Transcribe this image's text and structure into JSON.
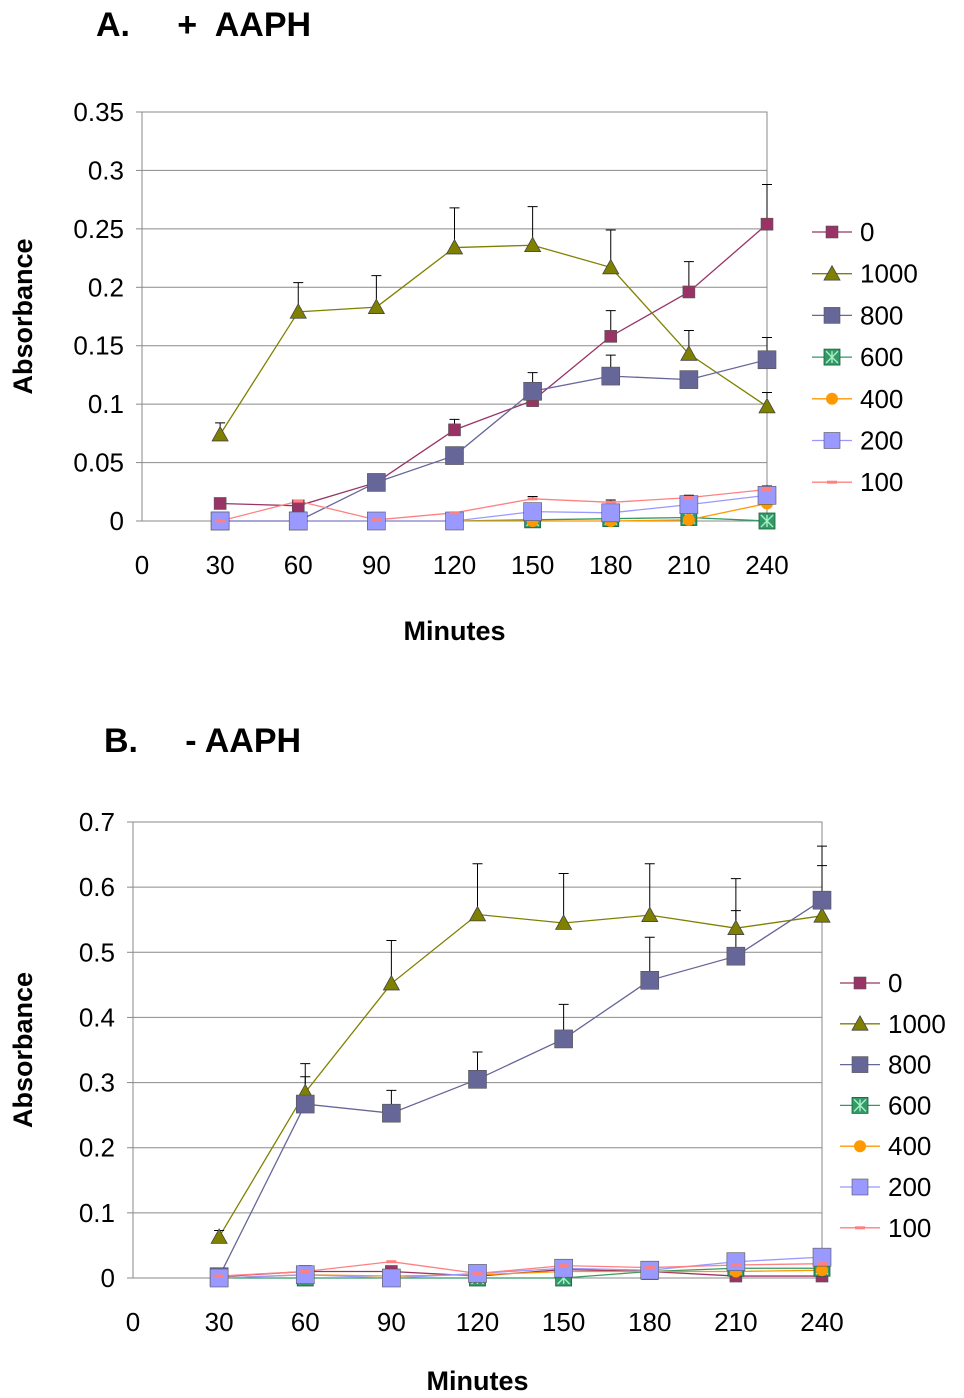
{
  "chart_data": [
    {
      "type": "line",
      "title": "A.     +  AAPH",
      "xlabel": "Minutes",
      "ylabel": "Absorbance",
      "x_ticks": [
        "0",
        "30",
        "60",
        "90",
        "120",
        "150",
        "180",
        "210",
        "240"
      ],
      "y_ticks": [
        "0",
        "0.05",
        "0.1",
        "0.15",
        "0.2",
        "0.25",
        "0.3",
        "0.35"
      ],
      "ylim": [
        0,
        0.35
      ],
      "xlim": [
        0,
        240
      ],
      "grid": "horizontal",
      "legend": "right",
      "x": [
        30,
        60,
        90,
        120,
        150,
        180,
        210,
        240
      ],
      "series": [
        {
          "name": "0",
          "color": "#993366",
          "marker": "square",
          "size": "small",
          "values": [
            0.015,
            0.013,
            0.033,
            0.078,
            0.103,
            0.158,
            0.196,
            0.254
          ],
          "errors": [
            0,
            0.005,
            0,
            0.009,
            0,
            0.022,
            0.026,
            0.034
          ]
        },
        {
          "name": "1000",
          "color": "#808000",
          "marker": "triangle",
          "size": "small",
          "values": [
            0.074,
            0.179,
            0.183,
            0.234,
            0.236,
            0.217,
            0.143,
            0.098
          ],
          "errors": [
            0.01,
            0.025,
            0.027,
            0.034,
            0.033,
            0.032,
            0.02,
            0.012
          ]
        },
        {
          "name": "800",
          "color": "#666699",
          "marker": "square",
          "size": "large",
          "values": [
            0,
            0,
            0.033,
            0.056,
            0.111,
            0.124,
            0.121,
            0.138
          ],
          "errors": [
            0,
            0,
            0,
            0,
            0.016,
            0.018,
            0,
            0.019
          ]
        },
        {
          "name": "600",
          "color": "#339966",
          "marker": "xsquare",
          "size": "medium",
          "values": [
            0,
            0,
            0,
            0,
            0.001,
            0.002,
            0.003,
            0
          ],
          "errors": [
            0,
            0,
            0,
            0,
            0,
            0,
            0,
            0
          ]
        },
        {
          "name": "400",
          "color": "#ff9900",
          "marker": "circle",
          "size": "small",
          "values": [
            0,
            0,
            0,
            0,
            0,
            0,
            0.001,
            0.015
          ],
          "errors": [
            0,
            0,
            0,
            0,
            0,
            0,
            0,
            0
          ]
        },
        {
          "name": "200",
          "color": "#9999ff",
          "marker": "square",
          "size": "large",
          "values": [
            0,
            0,
            0,
            0,
            0.008,
            0.007,
            0.014,
            0.022
          ],
          "errors": [
            0,
            0,
            0,
            0,
            0,
            0,
            0,
            0
          ]
        },
        {
          "name": "100",
          "color": "#ff8080",
          "marker": "dash",
          "size": "small",
          "values": [
            0,
            0.017,
            0.001,
            0.007,
            0.019,
            0.016,
            0.02,
            0.027
          ],
          "errors": [
            0,
            0,
            0,
            0,
            0.002,
            0.002,
            0.002,
            0.003
          ]
        }
      ]
    },
    {
      "type": "line",
      "title": "B.     - AAPH",
      "xlabel": "Minutes",
      "ylabel": "Absorbance",
      "x_ticks": [
        "0",
        "30",
        "60",
        "90",
        "120",
        "150",
        "180",
        "210",
        "240"
      ],
      "y_ticks": [
        "0",
        "0.1",
        "0.2",
        "0.3",
        "0.4",
        "0.5",
        "0.6",
        "0.7"
      ],
      "ylim": [
        0,
        0.7
      ],
      "xlim": [
        0,
        240
      ],
      "grid": "horizontal",
      "legend": "right",
      "x": [
        30,
        60,
        90,
        120,
        150,
        180,
        210,
        240
      ],
      "series": [
        {
          "name": "0",
          "color": "#993366",
          "marker": "square",
          "size": "small",
          "values": [
            0.002,
            0.01,
            0.01,
            0.003,
            0.013,
            0.01,
            0.003,
            0.003
          ],
          "errors": [
            0,
            0.008,
            0.004,
            0,
            0,
            0,
            0,
            0
          ]
        },
        {
          "name": "1000",
          "color": "#808000",
          "marker": "triangle",
          "size": "small",
          "values": [
            0.063,
            0.285,
            0.452,
            0.558,
            0.545,
            0.557,
            0.537,
            0.556
          ],
          "errors": [
            0.01,
            0.044,
            0.066,
            0.078,
            0.076,
            0.079,
            0.076,
            0.077
          ]
        },
        {
          "name": "800",
          "color": "#666699",
          "marker": "square",
          "size": "large",
          "values": [
            0.002,
            0.267,
            0.253,
            0.305,
            0.367,
            0.457,
            0.494,
            0.58
          ],
          "errors": [
            0,
            0.042,
            0.035,
            0.042,
            0.053,
            0.066,
            0.07,
            0.083
          ]
        },
        {
          "name": "600",
          "color": "#339966",
          "marker": "xsquare",
          "size": "medium",
          "values": [
            0,
            0,
            0,
            0,
            0,
            0.01,
            0.015,
            0.015
          ],
          "errors": [
            0,
            0,
            0,
            0,
            0,
            0,
            0,
            0
          ]
        },
        {
          "name": "400",
          "color": "#ff9900",
          "marker": "circle",
          "size": "small",
          "values": [
            0,
            0.005,
            0.003,
            0.005,
            0.01,
            0.01,
            0.01,
            0.012
          ],
          "errors": [
            0,
            0,
            0,
            0,
            0,
            0,
            0,
            0
          ]
        },
        {
          "name": "200",
          "color": "#9999ff",
          "marker": "square",
          "size": "large",
          "values": [
            0,
            0.005,
            0,
            0.007,
            0.015,
            0.012,
            0.025,
            0.032
          ],
          "errors": [
            0,
            0,
            0,
            0,
            0,
            0,
            0,
            0
          ]
        },
        {
          "name": "100",
          "color": "#ff8080",
          "marker": "dash",
          "size": "small",
          "values": [
            0.003,
            0.01,
            0.025,
            0.007,
            0.019,
            0.016,
            0.02,
            0.022
          ],
          "errors": [
            0,
            0,
            0,
            0,
            0,
            0,
            0,
            0
          ]
        }
      ]
    }
  ]
}
